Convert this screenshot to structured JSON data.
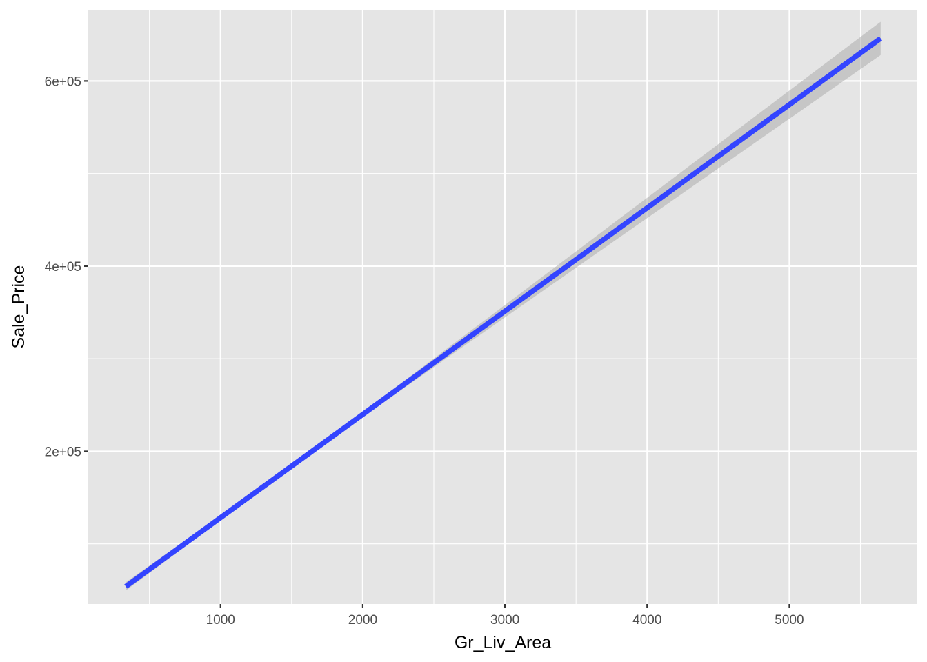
{
  "chart_data": {
    "type": "line",
    "title": "",
    "xlabel": "Gr_Liv_Area",
    "ylabel": "Sale_Price",
    "xlim": [
      70,
      5900
    ],
    "ylim": [
      35000,
      677000
    ],
    "x_ticks": [
      1000,
      2000,
      3000,
      4000,
      5000
    ],
    "x_tick_labels": [
      "1000",
      "2000",
      "3000",
      "4000",
      "5000"
    ],
    "x_minor_ticks": [
      500,
      1500,
      2500,
      3500,
      4500,
      5500
    ],
    "y_ticks": [
      200000,
      400000,
      600000
    ],
    "y_tick_labels": [
      "2e+05",
      "4e+05",
      "6e+05"
    ],
    "y_minor_ticks": [
      100000,
      300000,
      500000
    ],
    "grid": true,
    "series": [
      {
        "x": [
          334,
          5642
        ],
        "y": [
          54000,
          646000
        ],
        "ci_lower": [
          49500,
          628000
        ],
        "ci_upper": [
          58500,
          664000
        ]
      }
    ],
    "colors": {
      "panel_bg": "#E5E5E5",
      "grid": "#FFFFFF",
      "line": "#3344FF",
      "ribbon": "#A0A0A0"
    }
  }
}
